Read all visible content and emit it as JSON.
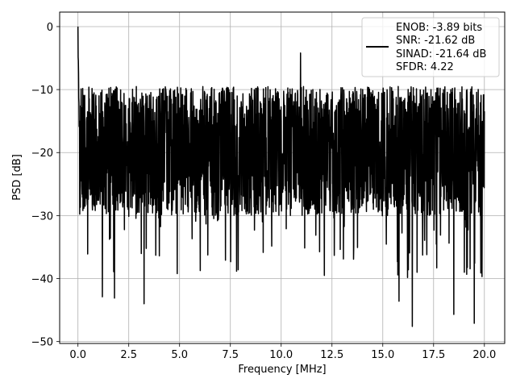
{
  "chart_data": {
    "type": "line",
    "xlabel": "Frequency [MHz]",
    "ylabel": "PSD [dB]",
    "xlim": [
      -0.9,
      21.0
    ],
    "ylim": [
      -50.3,
      2.3
    ],
    "xticks": [
      0.0,
      2.5,
      5.0,
      7.5,
      10.0,
      12.5,
      15.0,
      17.5,
      20.0
    ],
    "xtick_labels": [
      "0.0",
      "2.5",
      "5.0",
      "7.5",
      "10.0",
      "12.5",
      "15.0",
      "17.5",
      "20.0"
    ],
    "yticks": [
      0,
      -10,
      -20,
      -30,
      -40,
      -50
    ],
    "ytick_labels": [
      "0",
      "−10",
      "−20",
      "−30",
      "−40",
      "−50"
    ],
    "grid": true,
    "legend_position": "top-right",
    "legend": {
      "line1": "ENOB: -3.89 bits",
      "line2": "SNR: -21.62 dB",
      "line3": "SINAD: -21.64 dB",
      "line4": "SFDR: 4.22"
    },
    "series": [
      {
        "color": "#000000",
        "x_start": 0.0,
        "x_end": 20.0,
        "n_points": 2048,
        "peak_value": 0.0,
        "median_level": -19.5,
        "upper_envelope": -9.5,
        "lower_envelope": -30.0,
        "notable_points": [
          {
            "x": 0.0,
            "y": 0.0
          },
          {
            "x": 1.2,
            "y": -42.9
          },
          {
            "x": 1.8,
            "y": -43.1
          },
          {
            "x": 3.25,
            "y": -44.0
          },
          {
            "x": 10.95,
            "y": -4.2
          },
          {
            "x": 15.8,
            "y": -43.6
          },
          {
            "x": 16.45,
            "y": -47.6
          },
          {
            "x": 18.5,
            "y": -45.7
          },
          {
            "x": 19.5,
            "y": -47.1
          }
        ]
      }
    ]
  }
}
